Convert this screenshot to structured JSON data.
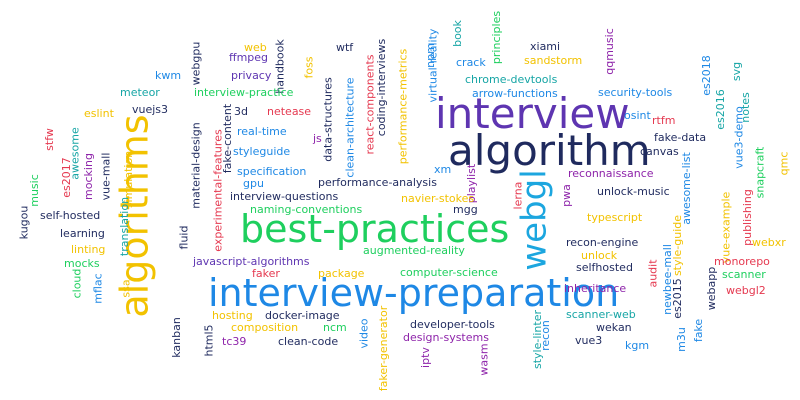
{
  "palette": {
    "navy": "#1f2a5e",
    "blue": "#1e88e5",
    "purple": "#8e24aa",
    "violet": "#5e35b1",
    "green": "#1ecf5e",
    "gold": "#f2c200",
    "red": "#e53950",
    "teal": "#16a5a5",
    "sky": "#1ca6df"
  },
  "words": [
    {
      "text": "interview-preparation",
      "color": "blue"
    },
    {
      "text": "best-practices",
      "color": "green"
    },
    {
      "text": "algorithm",
      "color": "navy"
    },
    {
      "text": "interview",
      "color": "violet"
    },
    {
      "text": "algorithms",
      "color": "gold"
    },
    {
      "text": "webgl",
      "color": "sky"
    },
    {
      "text": "handbook",
      "color": "navy"
    },
    {
      "text": "webgpu",
      "color": "navy"
    },
    {
      "text": "ffmpeg",
      "color": "violet"
    },
    {
      "text": "web",
      "color": "gold"
    },
    {
      "text": "privacy",
      "color": "violet"
    },
    {
      "text": "kwm",
      "color": "blue"
    },
    {
      "text": "meteor",
      "color": "teal"
    },
    {
      "text": "interview-practice",
      "color": "green"
    },
    {
      "text": "foss",
      "color": "gold"
    },
    {
      "text": "wtf",
      "color": "navy"
    },
    {
      "text": "react-components",
      "color": "red"
    },
    {
      "text": "coding-interviews",
      "color": "navy"
    },
    {
      "text": "clean-architecture",
      "color": "blue"
    },
    {
      "text": "data-structures",
      "color": "navy"
    },
    {
      "text": "performance-metrics",
      "color": "gold"
    },
    {
      "text": "npm",
      "color": "blue"
    },
    {
      "text": "virtual-reality",
      "color": "blue"
    },
    {
      "text": "book",
      "color": "teal"
    },
    {
      "text": "crack",
      "color": "blue"
    },
    {
      "text": "principles",
      "color": "green"
    },
    {
      "text": "xiami",
      "color": "navy"
    },
    {
      "text": "sandstorm",
      "color": "gold"
    },
    {
      "text": "chrome-devtools",
      "color": "teal"
    },
    {
      "text": "arrow-functions",
      "color": "blue"
    },
    {
      "text": "qqmusic",
      "color": "purple"
    },
    {
      "text": "security-tools",
      "color": "blue"
    },
    {
      "text": "osint",
      "color": "blue"
    },
    {
      "text": "es2018",
      "color": "blue"
    },
    {
      "text": "svg",
      "color": "teal"
    },
    {
      "text": "es2016",
      "color": "teal"
    },
    {
      "text": "notes",
      "color": "teal"
    },
    {
      "text": "vue3-demo",
      "color": "blue"
    },
    {
      "text": "vuejs3",
      "color": "navy"
    },
    {
      "text": "eslint",
      "color": "gold"
    },
    {
      "text": "3d",
      "color": "navy"
    },
    {
      "text": "netease",
      "color": "red"
    },
    {
      "text": "real-time",
      "color": "blue"
    },
    {
      "text": "fake-content",
      "color": "navy"
    },
    {
      "text": "material-design",
      "color": "navy"
    },
    {
      "text": "styleguide",
      "color": "blue"
    },
    {
      "text": "js",
      "color": "purple"
    },
    {
      "text": "rtfm",
      "color": "red"
    },
    {
      "text": "fake-data",
      "color": "navy"
    },
    {
      "text": "canvas",
      "color": "navy"
    },
    {
      "text": "stfw",
      "color": "red"
    },
    {
      "text": "awesome",
      "color": "teal"
    },
    {
      "text": "es2017",
      "color": "red"
    },
    {
      "text": "music",
      "color": "green"
    },
    {
      "text": "mocking",
      "color": "purple"
    },
    {
      "text": "vue-mall",
      "color": "navy"
    },
    {
      "text": "simulation",
      "color": "gold"
    },
    {
      "text": "specification",
      "color": "blue"
    },
    {
      "text": "gpu",
      "color": "blue"
    },
    {
      "text": "xm",
      "color": "blue"
    },
    {
      "text": "performance-analysis",
      "color": "navy"
    },
    {
      "text": "interview-questions",
      "color": "navy"
    },
    {
      "text": "playlist",
      "color": "purple"
    },
    {
      "text": "reconnaissance",
      "color": "purple"
    },
    {
      "text": "unlock-music",
      "color": "navy"
    },
    {
      "text": "awesome-list",
      "color": "blue"
    },
    {
      "text": "snapcraft",
      "color": "green"
    },
    {
      "text": "qmc",
      "color": "gold"
    },
    {
      "text": "experimental-features",
      "color": "red"
    },
    {
      "text": "kugou",
      "color": "navy"
    },
    {
      "text": "self-hosted",
      "color": "navy"
    },
    {
      "text": "translation",
      "color": "teal"
    },
    {
      "text": "fluid",
      "color": "navy"
    },
    {
      "text": "naming-conventions",
      "color": "green"
    },
    {
      "text": "navier-stokes",
      "color": "gold"
    },
    {
      "text": "mgg",
      "color": "navy"
    },
    {
      "text": "lerna",
      "color": "red"
    },
    {
      "text": "pwa",
      "color": "purple"
    },
    {
      "text": "typescript",
      "color": "gold"
    },
    {
      "text": "vue-example",
      "color": "gold"
    },
    {
      "text": "publishing",
      "color": "red"
    },
    {
      "text": "webxr",
      "color": "gold"
    },
    {
      "text": "learning",
      "color": "navy"
    },
    {
      "text": "augmented-reality",
      "color": "green"
    },
    {
      "text": "recon-engine",
      "color": "navy"
    },
    {
      "text": "style-guide",
      "color": "gold"
    },
    {
      "text": "javascript-algorithms",
      "color": "violet"
    },
    {
      "text": "unlock",
      "color": "gold"
    },
    {
      "text": "linting",
      "color": "gold"
    },
    {
      "text": "mocks",
      "color": "green"
    },
    {
      "text": "cloud",
      "color": "green"
    },
    {
      "text": "mflac",
      "color": "blue"
    },
    {
      "text": "ssa",
      "color": "gold"
    },
    {
      "text": "faker",
      "color": "red"
    },
    {
      "text": "package",
      "color": "gold"
    },
    {
      "text": "computer-science",
      "color": "green"
    },
    {
      "text": "selfhosted",
      "color": "navy"
    },
    {
      "text": "inheritance",
      "color": "purple"
    },
    {
      "text": "newbee-mall",
      "color": "blue"
    },
    {
      "text": "monorepo",
      "color": "red"
    },
    {
      "text": "scanner",
      "color": "green"
    },
    {
      "text": "webgl2",
      "color": "red"
    },
    {
      "text": "audit",
      "color": "red"
    },
    {
      "text": "webapp",
      "color": "navy"
    },
    {
      "text": "es2015",
      "color": "navy"
    },
    {
      "text": "kanban",
      "color": "navy"
    },
    {
      "text": "html5",
      "color": "navy"
    },
    {
      "text": "hosting",
      "color": "gold"
    },
    {
      "text": "docker-image",
      "color": "navy"
    },
    {
      "text": "composition",
      "color": "gold"
    },
    {
      "text": "ncm",
      "color": "green"
    },
    {
      "text": "tc39",
      "color": "purple"
    },
    {
      "text": "clean-code",
      "color": "navy"
    },
    {
      "text": "video",
      "color": "blue"
    },
    {
      "text": "faker-generator",
      "color": "gold"
    },
    {
      "text": "developer-tools",
      "color": "navy"
    },
    {
      "text": "design-systems",
      "color": "purple"
    },
    {
      "text": "iptv",
      "color": "purple"
    },
    {
      "text": "wasm",
      "color": "purple"
    },
    {
      "text": "style-linter",
      "color": "teal"
    },
    {
      "text": "recon",
      "color": "blue"
    },
    {
      "text": "scanner-web",
      "color": "teal"
    },
    {
      "text": "wekan",
      "color": "navy"
    },
    {
      "text": "vue3",
      "color": "navy"
    },
    {
      "text": "kgm",
      "color": "blue"
    },
    {
      "text": "m3u",
      "color": "blue"
    },
    {
      "text": "fake",
      "color": "blue"
    }
  ]
}
